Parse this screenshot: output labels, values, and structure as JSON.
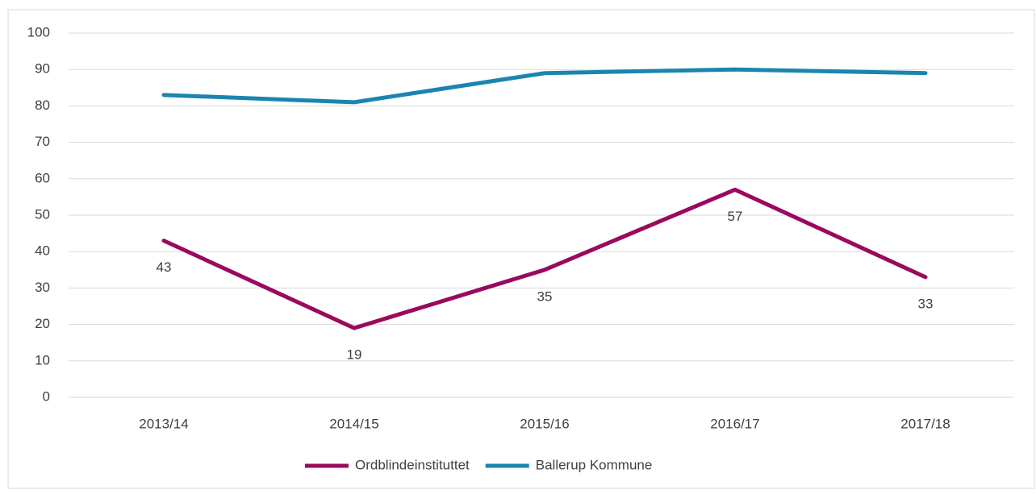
{
  "chart_data": {
    "type": "line",
    "categories": [
      "2013/14",
      "2014/15",
      "2015/16",
      "2016/17",
      "2017/18"
    ],
    "series": [
      {
        "name": "Ordblindeinstituttet",
        "color": "#990a5e",
        "values": [
          43,
          19,
          35,
          57,
          33
        ]
      },
      {
        "name": "Ballerup Kommune",
        "color": "#1b84b0",
        "values": [
          83,
          81,
          89,
          90,
          89
        ]
      }
    ],
    "data_labels_series": 0,
    "ylim": [
      0,
      100
    ],
    "yticks": [
      0,
      10,
      20,
      30,
      40,
      50,
      60,
      70,
      80,
      90,
      100
    ],
    "grid": true,
    "legend": "bottom"
  }
}
